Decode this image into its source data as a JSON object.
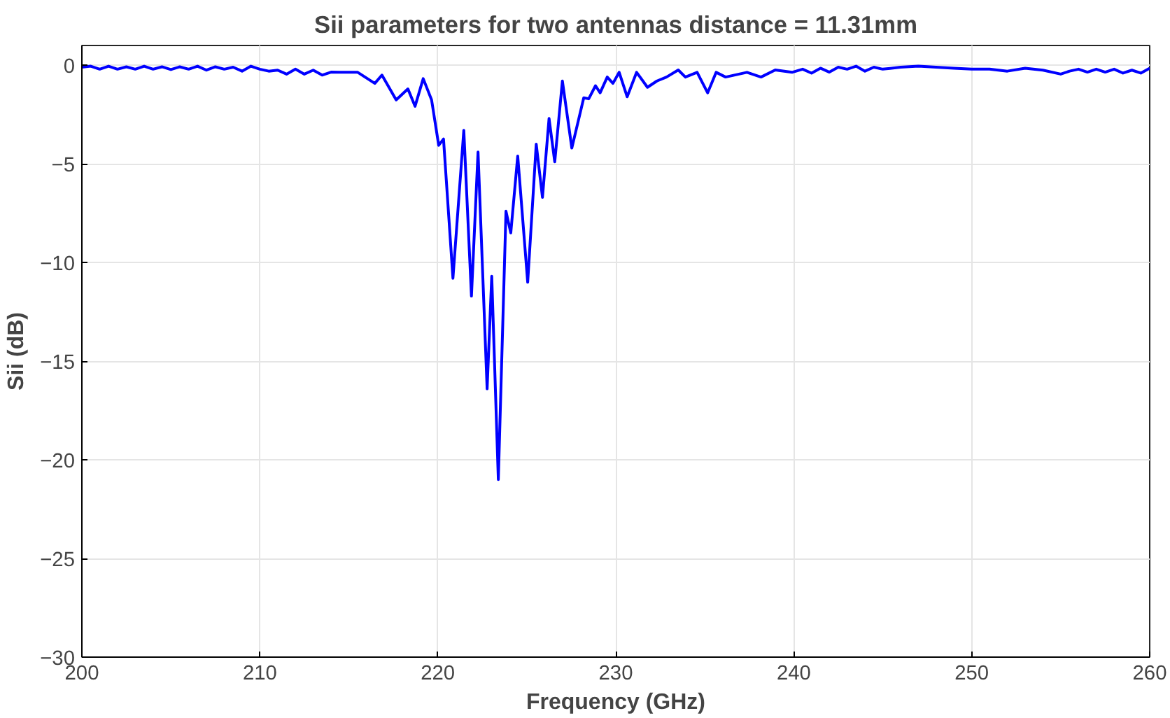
{
  "chart_data": {
    "type": "line",
    "title": "Sii parameters for two antennas distance = 11.31mm",
    "xlabel": "Frequency (GHz)",
    "ylabel": "Sii (dB)",
    "xlim": [
      200,
      260
    ],
    "ylim": [
      -30,
      1
    ],
    "xticks": [
      200,
      210,
      220,
      230,
      240,
      250,
      260
    ],
    "yticks": [
      -30,
      -25,
      -20,
      -15,
      -10,
      -5,
      0
    ],
    "grid": true,
    "line_style": "solid",
    "series": [
      {
        "color": "#0000ff",
        "x": [
          200,
          200.5,
          201,
          201.5,
          202,
          202.5,
          203,
          203.5,
          204,
          204.5,
          205,
          205.5,
          206,
          206.5,
          207,
          207.5,
          208,
          208.5,
          209,
          209.5,
          210,
          210.5,
          211,
          211.5,
          212,
          212.5,
          213,
          213.5,
          214,
          214.47,
          215.5,
          216.46,
          216.86,
          217.66,
          218.32,
          218.72,
          219.18,
          219.65,
          220.05,
          220.32,
          220.85,
          221.46,
          221.89,
          222.26,
          222.77,
          223.03,
          223.4,
          223.83,
          224.1,
          224.49,
          225.05,
          225.53,
          225.88,
          226.25,
          226.57,
          227.0,
          227.53,
          228.2,
          228.48,
          228.86,
          229.12,
          229.52,
          229.84,
          230.19,
          230.64,
          231.17,
          231.78,
          232.31,
          232.85,
          233.51,
          233.91,
          234.57,
          235.16,
          235.64,
          236.17,
          237.37,
          238.16,
          238.96,
          239.9,
          240.5,
          241,
          241.5,
          242,
          242.5,
          243,
          243.5,
          244,
          244.5,
          245,
          246,
          247,
          248,
          249,
          250,
          251,
          252,
          253,
          254,
          255,
          255.5,
          256,
          256.5,
          257,
          257.5,
          258,
          258.5,
          259,
          259.5,
          260
        ],
        "values": [
          -0.1,
          -0.05,
          -0.2,
          -0.05,
          -0.2,
          -0.08,
          -0.2,
          -0.05,
          -0.2,
          -0.08,
          -0.22,
          -0.08,
          -0.2,
          -0.05,
          -0.25,
          -0.08,
          -0.2,
          -0.1,
          -0.3,
          -0.05,
          -0.2,
          -0.3,
          -0.25,
          -0.45,
          -0.2,
          -0.45,
          -0.25,
          -0.5,
          -0.35,
          -0.36,
          -0.36,
          -0.92,
          -0.5,
          -1.76,
          -1.2,
          -2.08,
          -0.68,
          -1.76,
          -4.06,
          -3.74,
          -10.8,
          -3.3,
          -11.7,
          -4.4,
          -16.4,
          -10.7,
          -21.0,
          -7.4,
          -8.5,
          -4.6,
          -11.0,
          -4.0,
          -6.7,
          -2.7,
          -4.9,
          -0.8,
          -4.2,
          -1.65,
          -1.7,
          -1.04,
          -1.4,
          -0.6,
          -0.92,
          -0.36,
          -1.6,
          -0.36,
          -1.12,
          -0.8,
          -0.6,
          -0.24,
          -0.6,
          -0.36,
          -1.4,
          -0.36,
          -0.6,
          -0.36,
          -0.6,
          -0.24,
          -0.36,
          -0.2,
          -0.4,
          -0.15,
          -0.35,
          -0.1,
          -0.2,
          -0.05,
          -0.3,
          -0.1,
          -0.2,
          -0.1,
          -0.05,
          -0.1,
          -0.15,
          -0.2,
          -0.2,
          -0.3,
          -0.15,
          -0.25,
          -0.45,
          -0.3,
          -0.2,
          -0.35,
          -0.2,
          -0.35,
          -0.2,
          -0.4,
          -0.25,
          -0.4,
          -0.15
        ]
      }
    ]
  }
}
